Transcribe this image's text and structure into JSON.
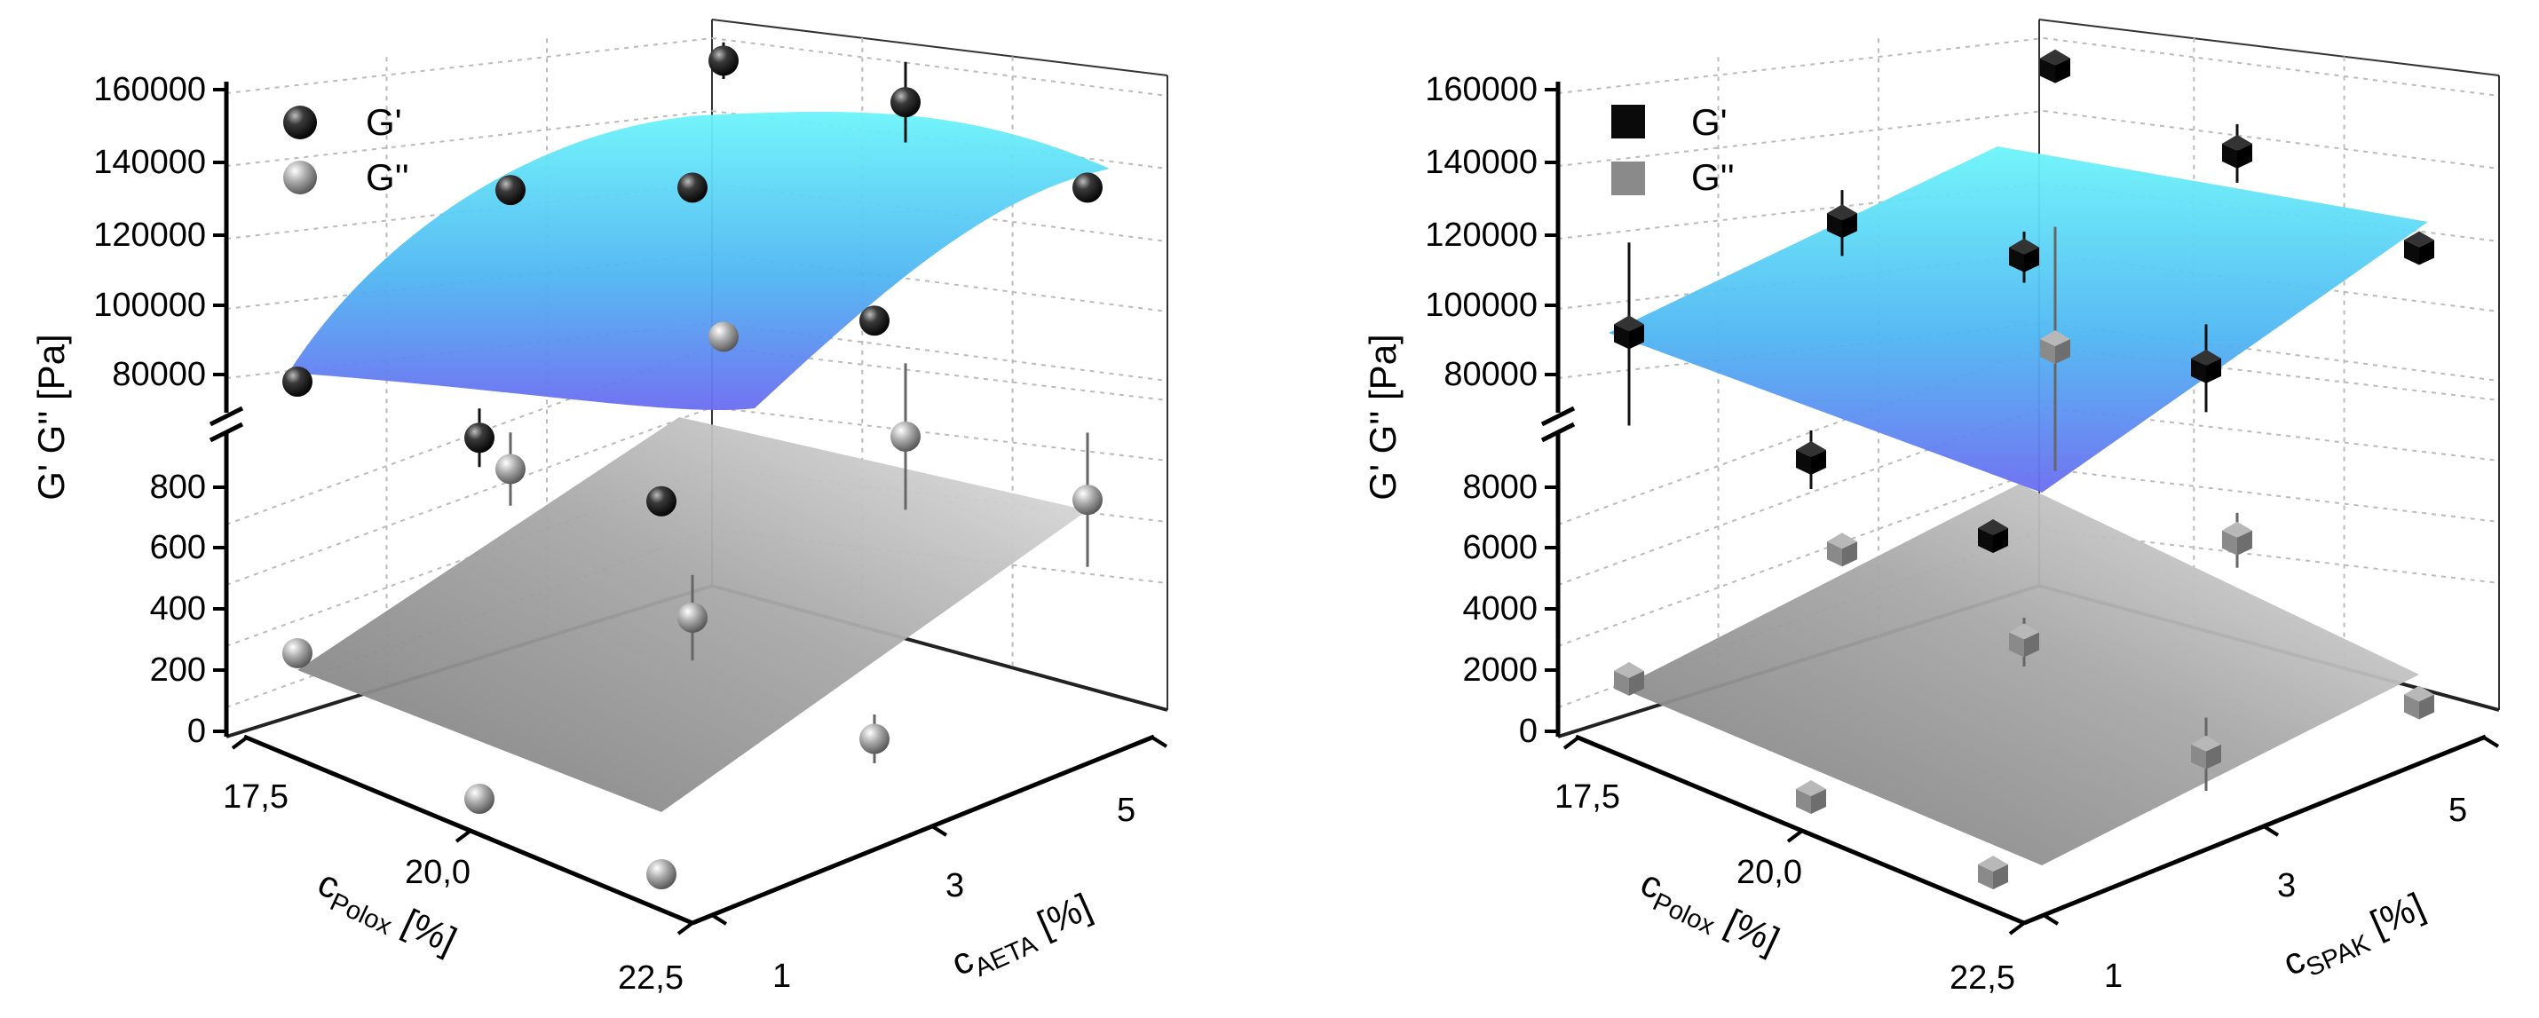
{
  "figure": {
    "description_panels": 2
  },
  "chart_data": [
    {
      "type": "scatter",
      "subtype": "3d-scatter-with-fitted-surfaces",
      "title": "",
      "legend": {
        "position": "top-left",
        "entries": [
          "G'",
          "G''"
        ]
      },
      "marker_shape": "sphere",
      "zlabel": "G' G'' [Pa]",
      "xlabel_main": "c",
      "xlabel_sub": "Polox",
      "xlabel_unit": " [%]",
      "ylabel_main": "c",
      "ylabel_sub": "AETA",
      "ylabel_unit": " [%]",
      "x_ticks": [
        "17,5",
        "20,0",
        "22,5"
      ],
      "y_ticks": [
        "1",
        "3",
        "5"
      ],
      "z_ticks_lower": [
        "0",
        "200",
        "400",
        "600",
        "800"
      ],
      "z_ticks_upper": [
        "80000",
        "100000",
        "120000",
        "140000",
        "160000"
      ],
      "axis_break": "between 800 and 80000",
      "grid": true,
      "series": [
        {
          "name": "G'",
          "color": "#111111",
          "points": [
            {
              "x": 17.5,
              "y": 1,
              "z": 80000,
              "err": 0
            },
            {
              "x": 17.5,
              "y": 3,
              "z": 123000,
              "err": 0
            },
            {
              "x": 17.5,
              "y": 5,
              "z": 149000,
              "err": 5000
            },
            {
              "x": 20.0,
              "y": 1,
              "z": 76000,
              "err": 8000
            },
            {
              "x": 20.0,
              "y": 3,
              "z": 135000,
              "err": 0
            },
            {
              "x": 20.0,
              "y": 5,
              "z": 149000,
              "err": 11000
            },
            {
              "x": 22.5,
              "y": 1,
              "z": 70000,
              "err": 0
            },
            {
              "x": 22.5,
              "y": 3,
              "z": 110000,
              "err": 0
            },
            {
              "x": 22.5,
              "y": 5,
              "z": 137000,
              "err": 0
            }
          ],
          "surface_color": "#5fd8f5"
        },
        {
          "name": "G''",
          "color": "#8a8a8a",
          "points": [
            {
              "x": 17.5,
              "y": 1,
              "z": 230,
              "err": 0
            },
            {
              "x": 17.5,
              "y": 3,
              "z": 630,
              "err": 120
            },
            {
              "x": 17.5,
              "y": 5,
              "z": 860,
              "err": 0
            },
            {
              "x": 20.0,
              "y": 1,
              "z": 0,
              "err": 0
            },
            {
              "x": 20.0,
              "y": 3,
              "z": 390,
              "err": 140
            },
            {
              "x": 20.0,
              "y": 5,
              "z": 780,
              "err": 240
            },
            {
              "x": 22.5,
              "y": 1,
              "z": 0,
              "err": 0
            },
            {
              "x": 22.5,
              "y": 3,
              "z": 240,
              "err": 80
            },
            {
              "x": 22.5,
              "y": 5,
              "z": 820,
              "err": 220
            }
          ],
          "surface_color": "#9a9a9a"
        }
      ]
    },
    {
      "type": "scatter",
      "subtype": "3d-scatter-with-fitted-surfaces",
      "title": "",
      "legend": {
        "position": "top-left",
        "entries": [
          "G'",
          "G''"
        ]
      },
      "marker_shape": "cube",
      "zlabel": "G' G'' [Pa]",
      "xlabel_main": "c",
      "xlabel_sub": "Polox",
      "xlabel_unit": " [%]",
      "ylabel_main": "c",
      "ylabel_sub": "SPAK",
      "ylabel_unit": " [%]",
      "x_ticks": [
        "17,5",
        "20,0",
        "22,5"
      ],
      "y_ticks": [
        "1",
        "3",
        "5"
      ],
      "z_ticks_lower": [
        "0",
        "2000",
        "4000",
        "6000",
        "8000"
      ],
      "z_ticks_upper": [
        "80000",
        "100000",
        "120000",
        "140000",
        "160000"
      ],
      "axis_break": "between 8000 and 80000",
      "grid": true,
      "series": [
        {
          "name": "G'",
          "color": "#111111",
          "points": [
            {
              "x": 17.5,
              "y": 1,
              "z": 93000,
              "err": 25000
            },
            {
              "x": 17.5,
              "y": 3,
              "z": 114000,
              "err": 9000
            },
            {
              "x": 17.5,
              "y": 5,
              "z": 147000,
              "err": 4000
            },
            {
              "x": 20.0,
              "y": 1,
              "z": 70000,
              "err": 8000
            },
            {
              "x": 20.0,
              "y": 3,
              "z": 116000,
              "err": 7000
            },
            {
              "x": 20.0,
              "y": 5,
              "z": 135000,
              "err": 8000
            },
            {
              "x": 22.5,
              "y": 1,
              "z": 60000,
              "err": 4000
            },
            {
              "x": 22.5,
              "y": 3,
              "z": 97000,
              "err": 12000
            },
            {
              "x": 22.5,
              "y": 5,
              "z": 120000,
              "err": 0
            }
          ],
          "surface_color": "#5fd8f5"
        },
        {
          "name": "G''",
          "color": "#8a8a8a",
          "points": [
            {
              "x": 17.5,
              "y": 1,
              "z": 1400,
              "err": 0
            },
            {
              "x": 17.5,
              "y": 3,
              "z": 3600,
              "err": 0
            },
            {
              "x": 17.5,
              "y": 5,
              "z": 8200,
              "err": 4000
            },
            {
              "x": 20.0,
              "y": 1,
              "z": 0,
              "err": 0
            },
            {
              "x": 20.0,
              "y": 3,
              "z": 3100,
              "err": 800
            },
            {
              "x": 20.0,
              "y": 5,
              "z": 4400,
              "err": 900
            },
            {
              "x": 22.5,
              "y": 1,
              "z": 0,
              "err": 0
            },
            {
              "x": 22.5,
              "y": 3,
              "z": 1900,
              "err": 1200
            },
            {
              "x": 22.5,
              "y": 5,
              "z": 1500,
              "err": 0
            }
          ],
          "surface_color": "#9a9a9a"
        }
      ]
    }
  ]
}
